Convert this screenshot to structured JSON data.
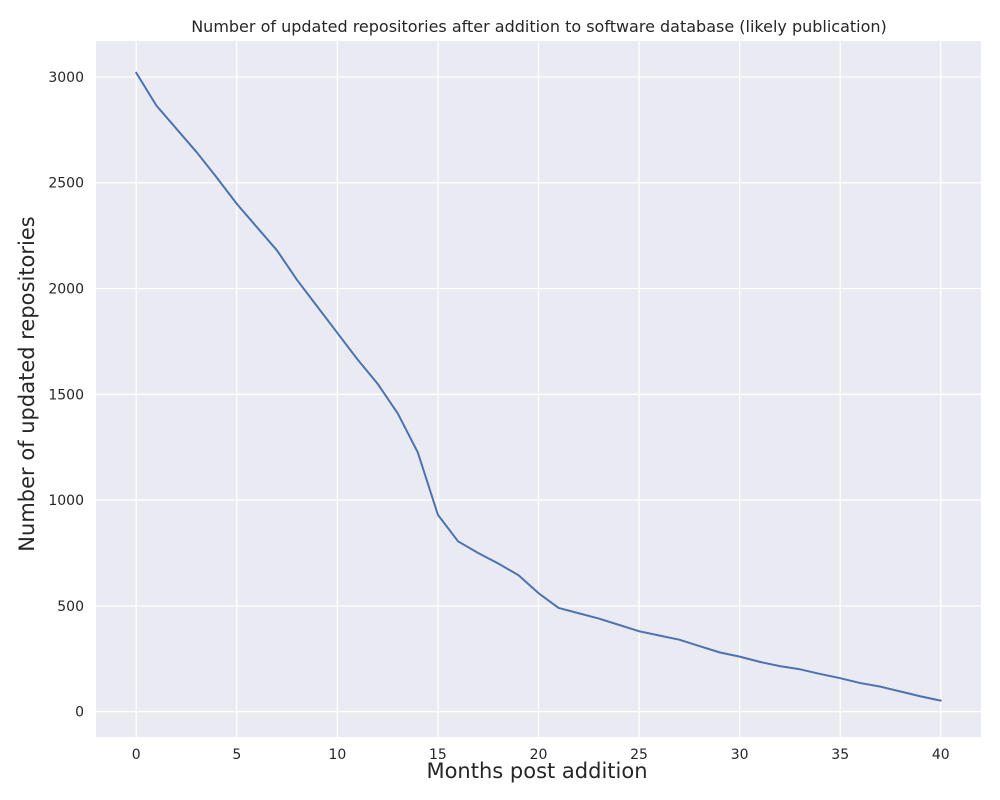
{
  "chart_data": {
    "type": "line",
    "title": "Number of updated repositories after addition to software database (likely publication)",
    "xlabel": "Months post addition",
    "ylabel": "Number of updated repositories",
    "xlim": [
      -2,
      42
    ],
    "ylim": [
      -120,
      3170
    ],
    "xticks": [
      0,
      5,
      10,
      15,
      20,
      25,
      30,
      35,
      40
    ],
    "yticks": [
      0,
      500,
      1000,
      1500,
      2000,
      2500,
      3000
    ],
    "grid": true,
    "background_color": "#eaeaf2",
    "line_color": "#4c72b0",
    "series": [
      {
        "x": [
          0,
          1,
          2,
          3,
          4,
          5,
          6,
          7,
          8,
          9,
          10,
          11,
          12,
          13,
          14,
          15,
          16,
          17,
          18,
          19,
          20,
          21,
          22,
          23,
          24,
          25,
          26,
          27,
          28,
          29,
          30,
          31,
          32,
          33,
          34,
          35,
          36,
          37,
          38,
          39,
          40
        ],
        "values": [
          3020,
          2865,
          2755,
          2645,
          2525,
          2400,
          2290,
          2180,
          2040,
          1915,
          1790,
          1665,
          1550,
          1410,
          1225,
          930,
          805,
          750,
          700,
          645,
          560,
          490,
          465,
          440,
          410,
          380,
          360,
          340,
          310,
          280,
          260,
          235,
          215,
          200,
          178,
          158,
          135,
          118,
          95,
          72,
          52
        ]
      }
    ]
  }
}
